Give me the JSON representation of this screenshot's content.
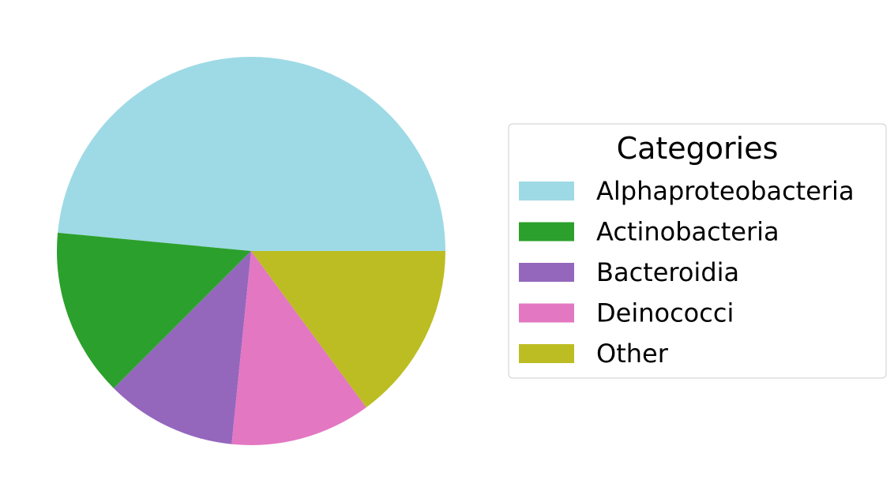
{
  "chart_data": {
    "type": "pie",
    "start_angle_deg": 0,
    "direction": "counterclockwise",
    "slices": [
      {
        "label": "Alphaproteobacteria",
        "value": 48.5,
        "color": "#9edae5"
      },
      {
        "label": "Actinobacteria",
        "value": 14.0,
        "color": "#2ca02c"
      },
      {
        "label": "Bacteroidia",
        "value": 10.9,
        "color": "#9467bd"
      },
      {
        "label": "Deinococci",
        "value": 11.7,
        "color": "#e377c2"
      },
      {
        "label": "Other",
        "value": 14.9,
        "color": "#bcbd22"
      }
    ],
    "legend": {
      "title": "Categories",
      "placement": "right"
    }
  }
}
